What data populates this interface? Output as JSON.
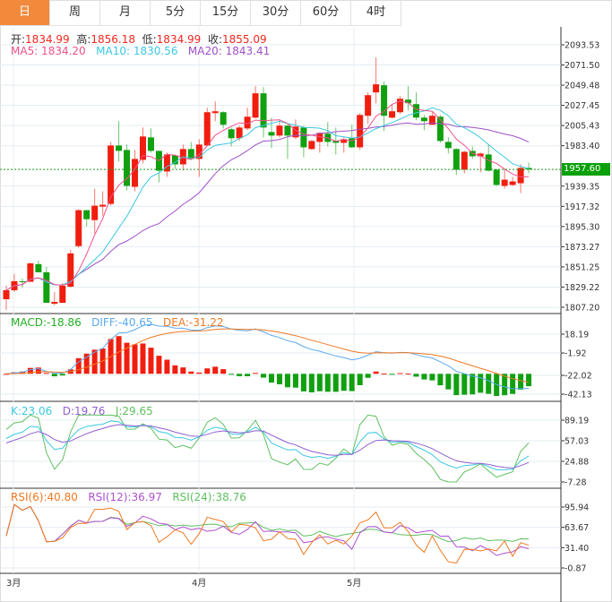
{
  "tabs": [
    {
      "label": "日",
      "active": true
    },
    {
      "label": "周"
    },
    {
      "label": "月"
    },
    {
      "label": "5分"
    },
    {
      "label": "15分"
    },
    {
      "label": "30分"
    },
    {
      "label": "60分"
    },
    {
      "label": "4时"
    }
  ],
  "legend": {
    "open_label": "开:",
    "open": "1834.99",
    "high_label": "高:",
    "high": "1856.18",
    "low_label": "低:",
    "low": "1834.99",
    "close_label": "收:",
    "close": "1855.09",
    "ma5": "MA5: 1834.20",
    "ma10": "MA10: 1830.56",
    "ma20": "MA20: 1843.41",
    "macd": "MACD:-18.86",
    "diff": "DIFF:-40.65",
    "dea": "DEA:-31.22",
    "k": "K:23.06",
    "d": "D:19.76",
    "j": "J:29.65",
    "rsi6": "RSI(6):40.80",
    "rsi12": "RSI(12):36.97",
    "rsi24": "RSI(24):38.76"
  },
  "last_price": "1957.60",
  "months": [
    "3月",
    "4月",
    "5月"
  ],
  "colors": {
    "up": "#f01e0e",
    "down": "#10a010",
    "ma5": "#f0508a",
    "ma10": "#3cc8e0",
    "ma20": "#a050c8",
    "diff": "#5aaaf0",
    "dea": "#f07820",
    "k": "#3cc8e0",
    "d": "#9060d0",
    "j": "#60c060",
    "rsi6": "#f07820",
    "rsi12": "#b050d0",
    "rsi24": "#60c060"
  },
  "chart_data": {
    "type": "candlestick",
    "title": "",
    "price_ticks": [
      "2093.53",
      "2071.50",
      "2049.48",
      "2027.45",
      "2005.43",
      "1983.40",
      "1939.35",
      "1917.32",
      "1895.30",
      "1873.27",
      "1851.25",
      "1829.22",
      "1807.20"
    ],
    "ylim": [
      1807.2,
      2093.53
    ],
    "macd_ticks": [
      "18.19",
      "-1.92",
      "-22.02",
      "-42.13"
    ],
    "kdj_ticks": [
      "89.19",
      "57.03",
      "24.88",
      "-7.28"
    ],
    "kdj_ylim": [
      -7.28,
      89.19
    ],
    "rsi_ticks": [
      "95.94",
      "63.67",
      "31.40",
      "-0.87"
    ],
    "rsi_ylim": [
      -0.87,
      95.94
    ],
    "ohlc_fields": [
      "open",
      "high",
      "low",
      "close"
    ],
    "candles": [
      [
        1816.0,
        1830.7,
        1804.3,
        1825.8
      ],
      [
        1825.8,
        1843.5,
        1823.9,
        1835.6
      ],
      [
        1835.6,
        1838.6,
        1828.7,
        1834.6
      ],
      [
        1834.99,
        1856.18,
        1834.99,
        1855.09
      ],
      [
        1854.3,
        1858.2,
        1845.4,
        1845.4
      ],
      [
        1845.4,
        1851.3,
        1812.1,
        1812.1
      ],
      [
        1811.1,
        1823.9,
        1809.2,
        1813.1
      ],
      [
        1812.1,
        1833.7,
        1812.1,
        1830.7
      ],
      [
        1829.7,
        1870.0,
        1828.7,
        1866.0
      ],
      [
        1873.9,
        1914.1,
        1871.9,
        1913.1
      ],
      [
        1913.1,
        1913.1,
        1895.5,
        1903.3
      ],
      [
        1902.3,
        1936.6,
        1887.6,
        1918.0
      ],
      [
        1917.0,
        1933.7,
        1907.2,
        1919.0
      ],
      [
        1920.0,
        1987.6,
        1918.0,
        1983.7
      ],
      [
        1983.7,
        2010.2,
        1966.1,
        1977.8
      ],
      [
        1978.8,
        1984.7,
        1934.7,
        1939.6
      ],
      [
        1938.6,
        1978.8,
        1933.7,
        1969.0
      ],
      [
        1968.0,
        2003.3,
        1964.1,
        1993.5
      ],
      [
        1992.5,
        2002.3,
        1975.9,
        1977.8
      ],
      [
        1977.8,
        1977.8,
        1943.5,
        1956.2
      ],
      [
        1955.3,
        1975.9,
        1949.4,
        1973.9
      ],
      [
        1972.9,
        1973.9,
        1958.2,
        1963.1
      ],
      [
        1963.1,
        1984.7,
        1956.2,
        1979.8
      ],
      [
        1979.8,
        1987.6,
        1968.0,
        1969.0
      ],
      [
        1969.0,
        1990.6,
        1949.4,
        1984.7
      ],
      [
        1983.7,
        2024.9,
        1982.7,
        2020.0
      ],
      [
        2019.0,
        2031.8,
        2010.2,
        2021.0
      ],
      [
        2020.0,
        2021.0,
        2002.3,
        2006.3
      ],
      [
        2001.4,
        2003.3,
        1982.7,
        1991.6
      ],
      [
        1991.6,
        2005.3,
        1988.6,
        2003.3
      ],
      [
        2002.3,
        2024.9,
        2000.4,
        2015.1
      ],
      [
        2014.1,
        2048.4,
        2013.1,
        2040.6
      ],
      [
        2040.6,
        2047.4,
        1992.5,
        2003.3
      ],
      [
        1998.4,
        2014.1,
        1980.8,
        1994.5
      ],
      [
        1994.5,
        2012.1,
        1992.5,
        2005.3
      ],
      [
        2005.3,
        2006.3,
        1969.0,
        1994.5
      ],
      [
        1992.5,
        2012.1,
        1990.6,
        2004.3
      ],
      [
        2003.3,
        2005.3,
        1971.0,
        1981.7
      ],
      [
        1979.8,
        1989.6,
        1978.8,
        1988.6
      ],
      [
        1987.6,
        1998.4,
        1975.9,
        1997.4
      ],
      [
        1996.5,
        2009.2,
        1982.7,
        1987.6
      ],
      [
        1988.6,
        2003.3,
        1973.9,
        1986.6
      ],
      [
        1986.6,
        1992.5,
        1975.9,
        1990.6
      ],
      [
        1991.6,
        2006.3,
        1980.8,
        1981.7
      ],
      [
        1981.7,
        2019.0,
        1978.8,
        2017.0
      ],
      [
        2016.1,
        2041.6,
        2007.2,
        2038.6
      ],
      [
        2041.6,
        2079.8,
        2029.8,
        2050.4
      ],
      [
        2049.4,
        2053.3,
        1999.4,
        2016.1
      ],
      [
        2014.1,
        2028.8,
        2013.1,
        2021.0
      ],
      [
        2020.0,
        2037.6,
        2018.0,
        2034.7
      ],
      [
        2033.7,
        2048.4,
        2021.9,
        2029.8
      ],
      [
        2028.8,
        2041.6,
        2011.2,
        2014.1
      ],
      [
        2014.1,
        2017.0,
        2000.4,
        2010.2
      ],
      [
        2006.3,
        2020.0,
        2006.3,
        2016.1
      ],
      [
        2015.1,
        2017.0,
        1986.6,
        1988.6
      ],
      [
        1987.6,
        1992.5,
        1974.9,
        1980.8
      ],
      [
        1979.8,
        1980.8,
        1951.4,
        1957.2
      ],
      [
        1957.2,
        1977.8,
        1953.3,
        1976.8
      ],
      [
        1977.8,
        1982.7,
        1969.0,
        1971.9
      ],
      [
        1971.9,
        1975.9,
        1954.3,
        1974.9
      ],
      [
        1973.9,
        1984.7,
        1955.3,
        1956.2
      ],
      [
        1957.2,
        1958.2,
        1939.6,
        1940.6
      ],
      [
        1939.6,
        1958.2,
        1936.6,
        1946.4
      ],
      [
        1940.6,
        1949.4,
        1939.6,
        1944.5
      ],
      [
        1942.5,
        1963.1,
        1931.7,
        1959.2
      ],
      [
        1959.2,
        1965.1,
        1953.3,
        1957.6
      ]
    ]
  }
}
